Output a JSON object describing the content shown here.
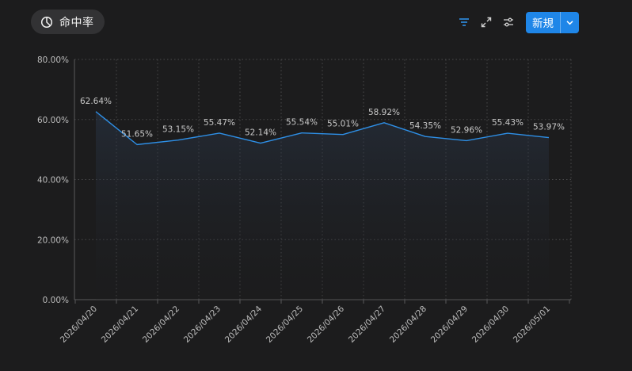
{
  "header": {
    "title": "命中率",
    "title_icon": "pie-chart-icon",
    "toolbar": {
      "filter_icon": "filter-icon",
      "fullscreen_icon": "expand-icon",
      "settings_icon": "sliders-icon",
      "new_label": "新規",
      "new_menu_icon": "chevron-down-icon"
    }
  },
  "colors": {
    "background": "#1c1c1d",
    "accent": "#1f86e8",
    "line": "#2e8fe6",
    "text": "#bfbfbf"
  },
  "chart_data": {
    "type": "area",
    "x": [
      "2026/04/20",
      "2026/04/21",
      "2026/04/22",
      "2026/04/23",
      "2026/04/24",
      "2026/04/25",
      "2026/04/26",
      "2026/04/27",
      "2026/04/28",
      "2026/04/29",
      "2026/04/30",
      "2026/05/01"
    ],
    "series": [
      {
        "values": [
          62.64,
          51.65,
          53.15,
          55.47,
          52.14,
          55.54,
          55.01,
          58.92,
          54.35,
          52.96,
          55.43,
          53.97
        ],
        "labels": [
          "62.64%",
          "51.65%",
          "53.15%",
          "55.47%",
          "52.14%",
          "55.54%",
          "55.01%",
          "58.92%",
          "54.35%",
          "52.96%",
          "55.43%",
          "53.97%"
        ]
      }
    ],
    "y_ticks": [
      "0.00%",
      "20.00%",
      "40.00%",
      "60.00%",
      "80.00%"
    ],
    "ylim": [
      0,
      80
    ],
    "grid": true,
    "title": "",
    "xlabel": "",
    "ylabel": ""
  }
}
